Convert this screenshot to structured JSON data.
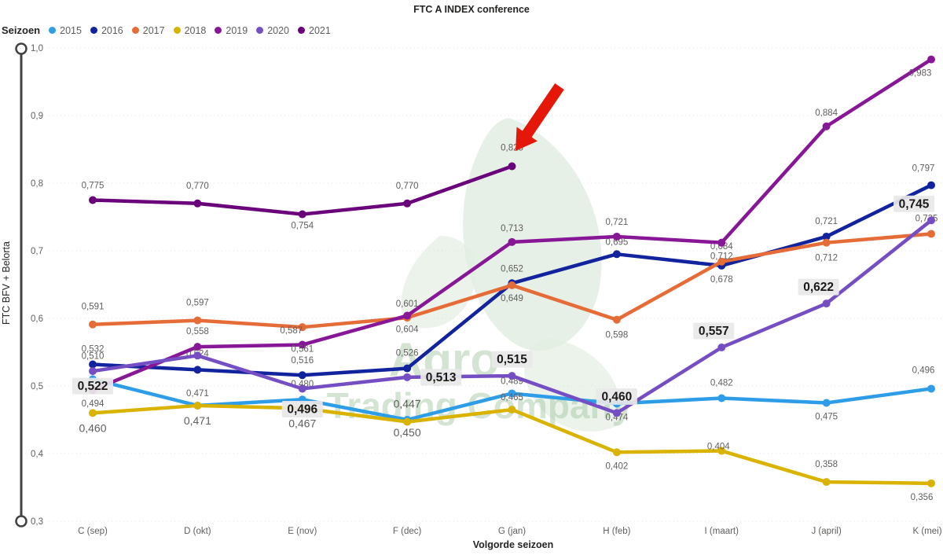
{
  "title": "FTC A INDEX conference",
  "legend": {
    "title": "Seizoen",
    "items": [
      {
        "label": "2015",
        "color": "#2E9DE8"
      },
      {
        "label": "2016",
        "color": "#12239E"
      },
      {
        "label": "2017",
        "color": "#E66C37"
      },
      {
        "label": "2018",
        "color": "#D9B300"
      },
      {
        "label": "2019",
        "color": "#881798"
      },
      {
        "label": "2020",
        "color": "#744EC2"
      },
      {
        "label": "2021",
        "color": "#6B007B"
      }
    ]
  },
  "y_axis": {
    "title": "FTC BFV + Belorta",
    "tick_labels": [
      "1,0",
      "0,9",
      "0,8",
      "0,7",
      "0,6",
      "0,5",
      "0,4",
      "0,3"
    ],
    "tick_values": [
      1.0,
      0.9,
      0.8,
      0.7,
      0.6,
      0.5,
      0.4,
      0.3
    ]
  },
  "x_axis": {
    "title": "Volgorde seizoen",
    "categories": [
      "C (sep)",
      "D (okt)",
      "E (nov)",
      "F (dec)",
      "G (jan)",
      "H (feb)",
      "I (maart)",
      "J (april)",
      "K (mei)"
    ]
  },
  "watermark": {
    "line1": "Agro",
    "line2": "Trading Company",
    "color": "#A9CBA9"
  },
  "annotation": {
    "type": "red-arrow",
    "points_to_label": "0,825",
    "color": "#E41709"
  },
  "chart_data": {
    "type": "line",
    "x": [
      "C (sep)",
      "D (okt)",
      "E (nov)",
      "F (dec)",
      "G (jan)",
      "H (feb)",
      "I (maart)",
      "J (april)",
      "K (mei)"
    ],
    "ylim": [
      0.3,
      1.0
    ],
    "grid": "dotted-horizontal",
    "legend_position": "top-left",
    "series": [
      {
        "name": "2015",
        "color": "#2E9DE8",
        "points": [
          {
            "v": 0.51,
            "label": "0,510",
            "pos": "a",
            "dy": -14
          },
          {
            "v": 0.471,
            "label": "0,471",
            "pos": "a"
          },
          {
            "v": 0.48,
            "label": "0,480",
            "pos": "a",
            "dy": -4
          },
          {
            "v": 0.45,
            "label": "0,450",
            "pos": "b",
            "big": 1
          },
          {
            "v": 0.489,
            "label": "0,489",
            "pos": "a"
          },
          {
            "v": 0.474,
            "label": "0,474",
            "pos": "b"
          },
          {
            "v": 0.482,
            "label": "0,482",
            "pos": "a",
            "dy": -4
          },
          {
            "v": 0.475,
            "label": "0,475",
            "pos": "b"
          },
          {
            "v": 0.496,
            "label": "0,496",
            "pos": "a",
            "dy": -8,
            "dx": -10
          }
        ]
      },
      {
        "name": "2016",
        "color": "#12239E",
        "points": [
          {
            "v": 0.532,
            "label": "0,532",
            "pos": "a",
            "dy": -4
          },
          {
            "v": 0.524,
            "label": "0,524",
            "pos": "a",
            "dy": -5
          },
          {
            "v": 0.516,
            "label": "0,516",
            "pos": "a",
            "dy": -3
          },
          {
            "v": 0.526,
            "label": "0,526",
            "pos": "a",
            "dy": -4
          },
          {
            "v": 0.652,
            "label": "0,652",
            "pos": "a",
            "dy": -3
          },
          {
            "v": 0.695,
            "label": "0,695",
            "pos": "a"
          },
          {
            "v": 0.678,
            "label": "0,678",
            "pos": "b"
          },
          {
            "v": 0.721,
            "label": "0,721",
            "pos": "a",
            "dy": -4
          },
          {
            "v": 0.797,
            "label": "0,797",
            "pos": "a",
            "dy": -6,
            "dx": -10
          }
        ]
      },
      {
        "name": "2017",
        "color": "#E66C37",
        "points": [
          {
            "v": 0.591,
            "label": "0,591",
            "pos": "a",
            "dy": -7
          },
          {
            "v": 0.597,
            "label": "0,597",
            "pos": "a",
            "dy": -7
          },
          {
            "v": 0.587,
            "label": "0,587",
            "pos": "b",
            "dy": -13,
            "dx": -14
          },
          {
            "v": 0.601,
            "label": "0,601",
            "pos": "a",
            "dy": -2
          },
          {
            "v": 0.649,
            "label": "0,649",
            "pos": "b",
            "dy": -1
          },
          {
            "v": 0.598,
            "label": "0,598",
            "pos": "b",
            "dy": 2
          },
          {
            "v": 0.684,
            "label": "0,684",
            "pos": "a",
            "dy": -4
          },
          {
            "v": 0.712,
            "label": "0,712",
            "pos": "b",
            "dy": 2
          },
          {
            "v": 0.725,
            "label": "0,725",
            "pos": "a",
            "dy": -4,
            "dx": -6
          }
        ]
      },
      {
        "name": "2018",
        "color": "#D9B300",
        "points": [
          {
            "v": 0.46,
            "label": "0,460",
            "pos": "b",
            "big": 1,
            "dy": 3
          },
          {
            "v": 0.471,
            "label": "0,471",
            "pos": "b",
            "big": 1,
            "dy": 3
          },
          {
            "v": 0.467,
            "label": "0,467",
            "pos": "b",
            "big": 1,
            "dy": 3
          },
          {
            "v": 0.447,
            "label": "0,447",
            "pos": "a",
            "big": 1,
            "dy": -6
          },
          {
            "v": 0.465,
            "label": "0,465",
            "pos": "a"
          },
          {
            "v": 0.402,
            "label": "0,402",
            "pos": "b"
          },
          {
            "v": 0.404,
            "label": "0,404",
            "pos": "a",
            "dy": 10,
            "dx": -4
          },
          {
            "v": 0.358,
            "label": "0,358",
            "pos": "a",
            "dy": -7
          },
          {
            "v": 0.356,
            "label": "0,356",
            "pos": "b",
            "dx": -12
          }
        ]
      },
      {
        "name": "2019",
        "color": "#881798",
        "points": [
          {
            "v": 0.494,
            "label": "0,494",
            "pos": "b"
          },
          {
            "v": 0.558,
            "label": "0,558",
            "pos": "a",
            "dy": -4
          },
          {
            "v": 0.561,
            "label": "0,561",
            "pos": "b",
            "dy": -12
          },
          {
            "v": 0.604,
            "label": "0,604",
            "pos": "b"
          },
          {
            "v": 0.713,
            "label": "0,713",
            "pos": "a",
            "dy": -2
          },
          {
            "v": 0.721,
            "label": "0,721",
            "pos": "a",
            "dy": -3
          },
          {
            "v": 0.712,
            "label": "0,712",
            "pos": "b"
          },
          {
            "v": 0.884,
            "label": "0,884",
            "pos": "a",
            "dy": -2
          },
          {
            "v": 0.983,
            "label": "0,983",
            "pos": "b",
            "dx": -14
          }
        ]
      },
      {
        "name": "2020",
        "color": "#744EC2",
        "highlighted": true,
        "points": [
          {
            "v": 0.522,
            "label": "0,522",
            "pos": "b",
            "box": 1,
            "dy": -3
          },
          {
            "v": 0.545,
            "label": null
          },
          {
            "v": 0.496,
            "label": "0,496",
            "pos": "b",
            "box": 1,
            "dy": 4
          },
          {
            "v": 0.513,
            "label": "0,513",
            "pos": "r",
            "box": 1,
            "dx": 43
          },
          {
            "v": 0.515,
            "label": "0,515",
            "pos": "a",
            "box": 1
          },
          {
            "v": 0.46,
            "label": "0,460",
            "pos": "a",
            "box": 1
          },
          {
            "v": 0.557,
            "label": "0,557",
            "pos": "a",
            "box": 1,
            "dx": -10
          },
          {
            "v": 0.622,
            "label": "0,622",
            "pos": "a",
            "box": 1,
            "dx": -10
          },
          {
            "v": 0.745,
            "label": "0,745",
            "pos": "a",
            "box": 1,
            "dx": -22
          }
        ]
      },
      {
        "name": "2021",
        "color": "#6B007B",
        "points": [
          {
            "v": 0.775,
            "label": "0,775",
            "pos": "a",
            "dy": -3
          },
          {
            "v": 0.77,
            "label": "0,770",
            "pos": "a",
            "dy": -7
          },
          {
            "v": 0.754,
            "label": "0,754",
            "pos": "b",
            "dy": -3
          },
          {
            "v": 0.77,
            "label": "0,770",
            "pos": "a",
            "dy": -7
          },
          {
            "v": 0.825,
            "label": "0,825",
            "pos": "a",
            "dy": -8
          }
        ]
      }
    ]
  }
}
